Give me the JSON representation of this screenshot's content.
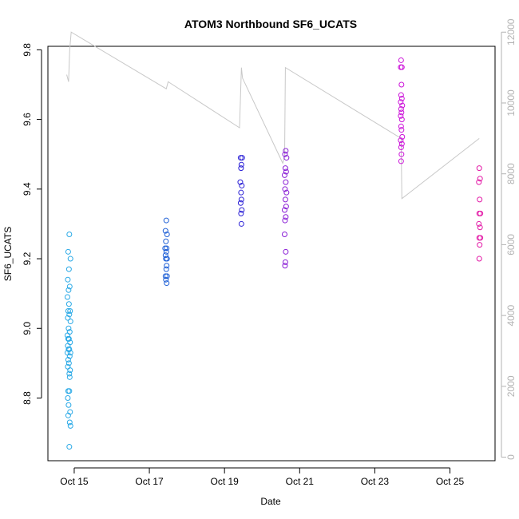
{
  "chart_data": {
    "type": "scatter",
    "title": "ATOM3 Northbound SF6_UCATS",
    "xlabel": "Date",
    "ylabel": "SF6_UCATS",
    "x_unit": "day of October",
    "xlim": [
      14.3,
      26.2
    ],
    "ylim": [
      8.62,
      9.81
    ],
    "y2lim": [
      -100,
      11600
    ],
    "x_ticks": [
      15,
      17,
      19,
      21,
      23,
      25
    ],
    "x_tick_labels": [
      "Oct 15",
      "Oct 17",
      "Oct 19",
      "Oct 21",
      "Oct 23",
      "Oct 25"
    ],
    "y_ticks": [
      8.8,
      9.0,
      9.2,
      9.4,
      9.6,
      9.8
    ],
    "y_tick_labels": [
      "8.8",
      "9.0",
      "9.2",
      "9.4",
      "9.6",
      "9.8"
    ],
    "y2_ticks": [
      0,
      2000,
      4000,
      6000,
      8000,
      10000,
      12000
    ],
    "y2_tick_labels": [
      "0",
      "2000",
      "4000",
      "6000",
      "8000",
      "10000",
      "12000"
    ],
    "grid": false,
    "series": [
      {
        "color": "#29a9e6",
        "points": [
          [
            14.87,
            9.27
          ],
          [
            14.84,
            9.22
          ],
          [
            14.9,
            9.2
          ],
          [
            14.86,
            9.17
          ],
          [
            14.83,
            9.14
          ],
          [
            14.88,
            9.12
          ],
          [
            14.85,
            9.11
          ],
          [
            14.82,
            9.09
          ],
          [
            14.86,
            9.07
          ],
          [
            14.89,
            9.05
          ],
          [
            14.84,
            9.05
          ],
          [
            14.87,
            9.04
          ],
          [
            14.83,
            9.03
          ],
          [
            14.9,
            9.02
          ],
          [
            14.85,
            9.0
          ],
          [
            14.88,
            8.99
          ],
          [
            14.82,
            8.98
          ],
          [
            14.86,
            8.97
          ],
          [
            14.84,
            8.97
          ],
          [
            14.89,
            8.96
          ],
          [
            14.83,
            8.95
          ],
          [
            14.87,
            8.94
          ],
          [
            14.85,
            8.94
          ],
          [
            14.9,
            8.93
          ],
          [
            14.82,
            8.93
          ],
          [
            14.88,
            8.92
          ],
          [
            14.84,
            8.91
          ],
          [
            14.86,
            8.9
          ],
          [
            14.83,
            8.89
          ],
          [
            14.89,
            8.88
          ],
          [
            14.87,
            8.87
          ],
          [
            14.88,
            8.86
          ],
          [
            14.84,
            8.82
          ],
          [
            14.87,
            8.82
          ],
          [
            14.83,
            8.8
          ],
          [
            14.85,
            8.78
          ],
          [
            14.89,
            8.76
          ],
          [
            14.84,
            8.75
          ],
          [
            14.88,
            8.73
          ],
          [
            14.9,
            8.72
          ],
          [
            14.87,
            8.66
          ]
        ]
      },
      {
        "color": "#1f60d6",
        "points": [
          [
            17.45,
            9.31
          ],
          [
            17.43,
            9.28
          ],
          [
            17.47,
            9.27
          ],
          [
            17.44,
            9.25
          ],
          [
            17.46,
            9.23
          ],
          [
            17.42,
            9.23
          ],
          [
            17.45,
            9.22
          ],
          [
            17.43,
            9.21
          ],
          [
            17.47,
            9.2
          ],
          [
            17.44,
            9.2
          ],
          [
            17.46,
            9.18
          ],
          [
            17.45,
            9.17
          ],
          [
            17.43,
            9.15
          ],
          [
            17.47,
            9.15
          ],
          [
            17.44,
            9.14
          ],
          [
            17.46,
            9.13
          ]
        ]
      },
      {
        "color": "#2b20d6",
        "points": [
          [
            19.43,
            9.49
          ],
          [
            19.47,
            9.49
          ],
          [
            19.45,
            9.47
          ],
          [
            19.44,
            9.46
          ],
          [
            19.42,
            9.42
          ],
          [
            19.46,
            9.41
          ],
          [
            19.44,
            9.39
          ],
          [
            19.45,
            9.37
          ],
          [
            19.43,
            9.36
          ],
          [
            19.46,
            9.34
          ],
          [
            19.44,
            9.33
          ],
          [
            19.45,
            9.3
          ]
        ]
      },
      {
        "color": "#8a1fd6",
        "points": [
          [
            20.63,
            9.51
          ],
          [
            20.61,
            9.5
          ],
          [
            20.65,
            9.49
          ],
          [
            20.62,
            9.46
          ],
          [
            20.64,
            9.45
          ],
          [
            20.6,
            9.44
          ],
          [
            20.63,
            9.42
          ],
          [
            20.61,
            9.4
          ],
          [
            20.65,
            9.39
          ],
          [
            20.62,
            9.37
          ],
          [
            20.64,
            9.35
          ],
          [
            20.6,
            9.34
          ],
          [
            20.63,
            9.32
          ],
          [
            20.61,
            9.31
          ],
          [
            20.6,
            9.27
          ],
          [
            20.63,
            9.22
          ],
          [
            20.62,
            9.19
          ],
          [
            20.61,
            9.18
          ]
        ]
      },
      {
        "color": "#cc14d9",
        "points": [
          [
            23.7,
            9.77
          ],
          [
            23.69,
            9.75
          ],
          [
            23.72,
            9.75
          ],
          [
            23.71,
            9.7
          ],
          [
            23.7,
            9.67
          ],
          [
            23.72,
            9.66
          ],
          [
            23.69,
            9.65
          ],
          [
            23.73,
            9.64
          ],
          [
            23.7,
            9.63
          ],
          [
            23.71,
            9.62
          ],
          [
            23.69,
            9.61
          ],
          [
            23.72,
            9.6
          ],
          [
            23.7,
            9.58
          ],
          [
            23.71,
            9.57
          ],
          [
            23.73,
            9.55
          ],
          [
            23.69,
            9.54
          ],
          [
            23.72,
            9.53
          ],
          [
            23.7,
            9.52
          ],
          [
            23.71,
            9.5
          ],
          [
            23.7,
            9.48
          ]
        ]
      },
      {
        "color": "#e319a6",
        "points": [
          [
            25.78,
            9.46
          ],
          [
            25.8,
            9.43
          ],
          [
            25.77,
            9.42
          ],
          [
            25.79,
            9.37
          ],
          [
            25.78,
            9.33
          ],
          [
            25.81,
            9.33
          ],
          [
            25.77,
            9.3
          ],
          [
            25.8,
            9.29
          ],
          [
            25.78,
            9.26
          ],
          [
            25.81,
            9.26
          ],
          [
            25.79,
            9.24
          ],
          [
            25.78,
            9.2
          ]
        ]
      }
    ],
    "secondary_line": {
      "color": "#c8c8c8",
      "axis": "right",
      "points": [
        [
          14.8,
          10800
        ],
        [
          14.85,
          10600
        ],
        [
          14.88,
          11500
        ],
        [
          14.92,
          12000
        ],
        [
          17.45,
          10400
        ],
        [
          17.5,
          10600
        ],
        [
          19.4,
          9300
        ],
        [
          19.45,
          11000
        ],
        [
          19.48,
          10700
        ],
        [
          20.55,
          8300
        ],
        [
          20.6,
          8500
        ],
        [
          20.62,
          11000
        ],
        [
          23.7,
          9000
        ],
        [
          23.72,
          7300
        ],
        [
          25.78,
          9000
        ]
      ]
    }
  }
}
